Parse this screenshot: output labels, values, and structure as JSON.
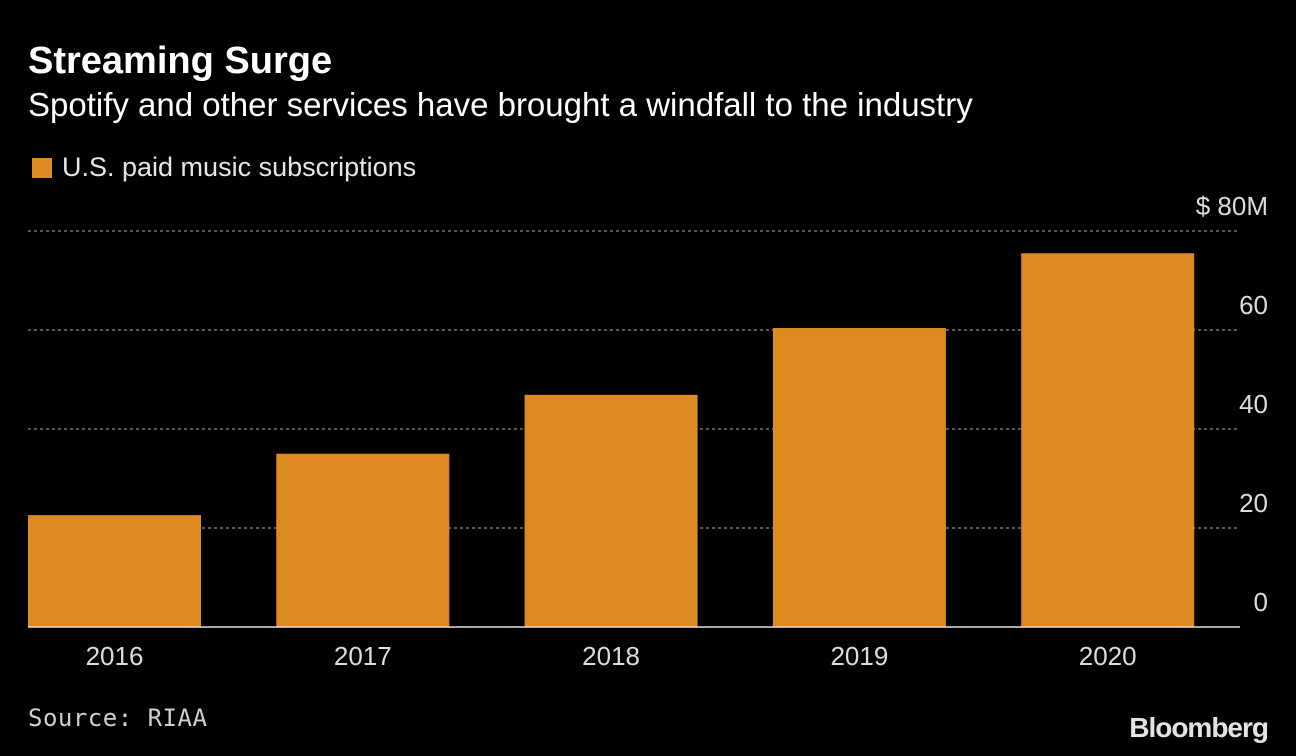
{
  "header": {
    "title": "Streaming Surge",
    "subtitle": "Spotify and other services have brought a windfall to the industry"
  },
  "legend": {
    "label": "U.S. paid music subscriptions",
    "color": "#de8a23"
  },
  "footer": {
    "source": "Source: RIAA",
    "brand": "Bloomberg"
  },
  "chart_data": {
    "type": "bar",
    "title": "Streaming Surge",
    "subtitle": "Spotify and other services have brought a windfall to the industry",
    "categories": [
      "2016",
      "2017",
      "2018",
      "2019",
      "2020"
    ],
    "series": [
      {
        "name": "U.S. paid music subscriptions",
        "values": [
          22.6,
          35.0,
          46.9,
          60.4,
          75.5
        ],
        "color": "#de8a23"
      }
    ],
    "ylim": [
      0,
      80
    ],
    "yticks": [
      0,
      20,
      40,
      60,
      80
    ],
    "ytick_labels": [
      "0",
      "20",
      "40",
      "60",
      "$ 80M"
    ],
    "y_axis_side": "right",
    "grid": true,
    "legend_position": "top-left"
  }
}
